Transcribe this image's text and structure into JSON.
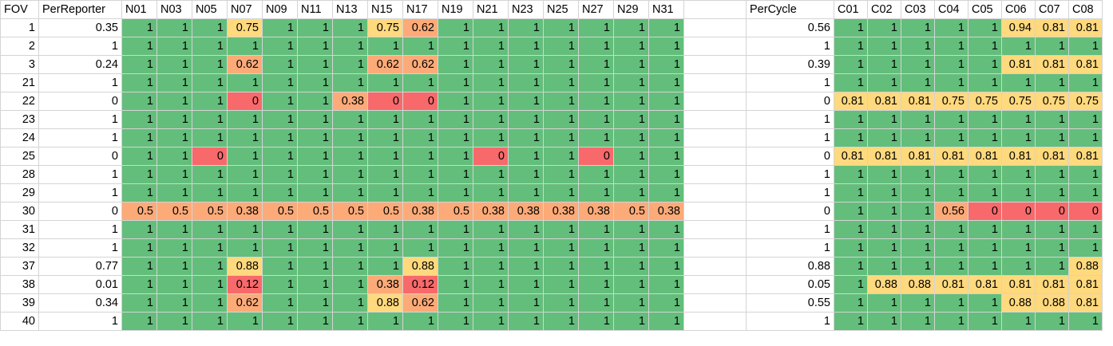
{
  "left_headers": [
    "FOV",
    "PerReporter",
    "N01",
    "N03",
    "N05",
    "N07",
    "N09",
    "N11",
    "N13",
    "N15",
    "N17",
    "N19",
    "N21",
    "N23",
    "N25",
    "N27",
    "N29",
    "N31"
  ],
  "right_headers": [
    "PerCycle",
    "C01",
    "C02",
    "C03",
    "C04",
    "C05",
    "C06",
    "C07",
    "C08"
  ],
  "colors": {
    "green": "#63be7b",
    "yellow": "#ffd97d",
    "orange": "#fcaa78",
    "red": "#f8696b",
    "gridline": "#d4d4d4"
  },
  "rows": [
    {
      "fov": "1",
      "per_reporter": "0.35",
      "n": [
        "1",
        "1",
        "1",
        "0.75",
        "1",
        "1",
        "1",
        "0.75",
        "0.62",
        "1",
        "1",
        "1",
        "1",
        "1",
        "1",
        "1"
      ],
      "per_cycle": "0.56",
      "c": [
        "1",
        "1",
        "1",
        "1",
        "1",
        "0.94",
        "0.81",
        "0.81"
      ]
    },
    {
      "fov": "2",
      "per_reporter": "1",
      "n": [
        "1",
        "1",
        "1",
        "1",
        "1",
        "1",
        "1",
        "1",
        "1",
        "1",
        "1",
        "1",
        "1",
        "1",
        "1",
        "1"
      ],
      "per_cycle": "1",
      "c": [
        "1",
        "1",
        "1",
        "1",
        "1",
        "1",
        "1",
        "1"
      ]
    },
    {
      "fov": "3",
      "per_reporter": "0.24",
      "n": [
        "1",
        "1",
        "1",
        "0.62",
        "1",
        "1",
        "1",
        "0.62",
        "0.62",
        "1",
        "1",
        "1",
        "1",
        "1",
        "1",
        "1"
      ],
      "per_cycle": "0.39",
      "c": [
        "1",
        "1",
        "1",
        "1",
        "1",
        "0.81",
        "0.81",
        "0.81"
      ]
    },
    {
      "fov": "21",
      "per_reporter": "1",
      "n": [
        "1",
        "1",
        "1",
        "1",
        "1",
        "1",
        "1",
        "1",
        "1",
        "1",
        "1",
        "1",
        "1",
        "1",
        "1",
        "1"
      ],
      "per_cycle": "1",
      "c": [
        "1",
        "1",
        "1",
        "1",
        "1",
        "1",
        "1",
        "1"
      ]
    },
    {
      "fov": "22",
      "per_reporter": "0",
      "n": [
        "1",
        "1",
        "1",
        "0",
        "1",
        "1",
        "0.38",
        "0",
        "0",
        "1",
        "1",
        "1",
        "1",
        "1",
        "1",
        "1"
      ],
      "per_cycle": "0",
      "c": [
        "0.81",
        "0.81",
        "0.81",
        "0.75",
        "0.75",
        "0.75",
        "0.75",
        "0.75"
      ]
    },
    {
      "fov": "23",
      "per_reporter": "1",
      "n": [
        "1",
        "1",
        "1",
        "1",
        "1",
        "1",
        "1",
        "1",
        "1",
        "1",
        "1",
        "1",
        "1",
        "1",
        "1",
        "1"
      ],
      "per_cycle": "1",
      "c": [
        "1",
        "1",
        "1",
        "1",
        "1",
        "1",
        "1",
        "1"
      ]
    },
    {
      "fov": "24",
      "per_reporter": "1",
      "n": [
        "1",
        "1",
        "1",
        "1",
        "1",
        "1",
        "1",
        "1",
        "1",
        "1",
        "1",
        "1",
        "1",
        "1",
        "1",
        "1"
      ],
      "per_cycle": "1",
      "c": [
        "1",
        "1",
        "1",
        "1",
        "1",
        "1",
        "1",
        "1"
      ]
    },
    {
      "fov": "25",
      "per_reporter": "0",
      "n": [
        "1",
        "1",
        "0",
        "1",
        "1",
        "1",
        "1",
        "1",
        "1",
        "1",
        "0",
        "1",
        "1",
        "0",
        "1",
        "1"
      ],
      "per_cycle": "0",
      "c": [
        "0.81",
        "0.81",
        "0.81",
        "0.81",
        "0.81",
        "0.81",
        "0.81",
        "0.81"
      ]
    },
    {
      "fov": "28",
      "per_reporter": "1",
      "n": [
        "1",
        "1",
        "1",
        "1",
        "1",
        "1",
        "1",
        "1",
        "1",
        "1",
        "1",
        "1",
        "1",
        "1",
        "1",
        "1"
      ],
      "per_cycle": "1",
      "c": [
        "1",
        "1",
        "1",
        "1",
        "1",
        "1",
        "1",
        "1"
      ]
    },
    {
      "fov": "29",
      "per_reporter": "1",
      "n": [
        "1",
        "1",
        "1",
        "1",
        "1",
        "1",
        "1",
        "1",
        "1",
        "1",
        "1",
        "1",
        "1",
        "1",
        "1",
        "1"
      ],
      "per_cycle": "1",
      "c": [
        "1",
        "1",
        "1",
        "1",
        "1",
        "1",
        "1",
        "1"
      ]
    },
    {
      "fov": "30",
      "per_reporter": "0",
      "n": [
        "0.5",
        "0.5",
        "0.5",
        "0.38",
        "0.5",
        "0.5",
        "0.5",
        "0.5",
        "0.38",
        "0.5",
        "0.38",
        "0.38",
        "0.38",
        "0.38",
        "0.5",
        "0.38"
      ],
      "per_cycle": "0",
      "c": [
        "1",
        "1",
        "1",
        "0.56",
        "0",
        "0",
        "0",
        "0"
      ]
    },
    {
      "fov": "31",
      "per_reporter": "1",
      "n": [
        "1",
        "1",
        "1",
        "1",
        "1",
        "1",
        "1",
        "1",
        "1",
        "1",
        "1",
        "1",
        "1",
        "1",
        "1",
        "1"
      ],
      "per_cycle": "1",
      "c": [
        "1",
        "1",
        "1",
        "1",
        "1",
        "1",
        "1",
        "1"
      ]
    },
    {
      "fov": "32",
      "per_reporter": "1",
      "n": [
        "1",
        "1",
        "1",
        "1",
        "1",
        "1",
        "1",
        "1",
        "1",
        "1",
        "1",
        "1",
        "1",
        "1",
        "1",
        "1"
      ],
      "per_cycle": "1",
      "c": [
        "1",
        "1",
        "1",
        "1",
        "1",
        "1",
        "1",
        "1"
      ]
    },
    {
      "fov": "37",
      "per_reporter": "0.77",
      "n": [
        "1",
        "1",
        "1",
        "0.88",
        "1",
        "1",
        "1",
        "1",
        "0.88",
        "1",
        "1",
        "1",
        "1",
        "1",
        "1",
        "1"
      ],
      "per_cycle": "0.88",
      "c": [
        "1",
        "1",
        "1",
        "1",
        "1",
        "1",
        "1",
        "0.88"
      ]
    },
    {
      "fov": "38",
      "per_reporter": "0.01",
      "n": [
        "1",
        "1",
        "1",
        "0.12",
        "1",
        "1",
        "1",
        "0.38",
        "0.12",
        "1",
        "1",
        "1",
        "1",
        "1",
        "1",
        "1"
      ],
      "per_cycle": "0.05",
      "c": [
        "1",
        "0.88",
        "0.88",
        "0.81",
        "0.81",
        "0.81",
        "0.81",
        "0.81"
      ]
    },
    {
      "fov": "39",
      "per_reporter": "0.34",
      "n": [
        "1",
        "1",
        "1",
        "0.62",
        "1",
        "1",
        "1",
        "0.88",
        "0.62",
        "1",
        "1",
        "1",
        "1",
        "1",
        "1",
        "1"
      ],
      "per_cycle": "0.55",
      "c": [
        "1",
        "1",
        "1",
        "1",
        "1",
        "0.88",
        "0.88",
        "0.81"
      ]
    },
    {
      "fov": "40",
      "per_reporter": "1",
      "n": [
        "1",
        "1",
        "1",
        "1",
        "1",
        "1",
        "1",
        "1",
        "1",
        "1",
        "1",
        "1",
        "1",
        "1",
        "1",
        "1"
      ],
      "per_cycle": "1",
      "c": [
        "1",
        "1",
        "1",
        "1",
        "1",
        "1",
        "1",
        "1"
      ]
    }
  ]
}
